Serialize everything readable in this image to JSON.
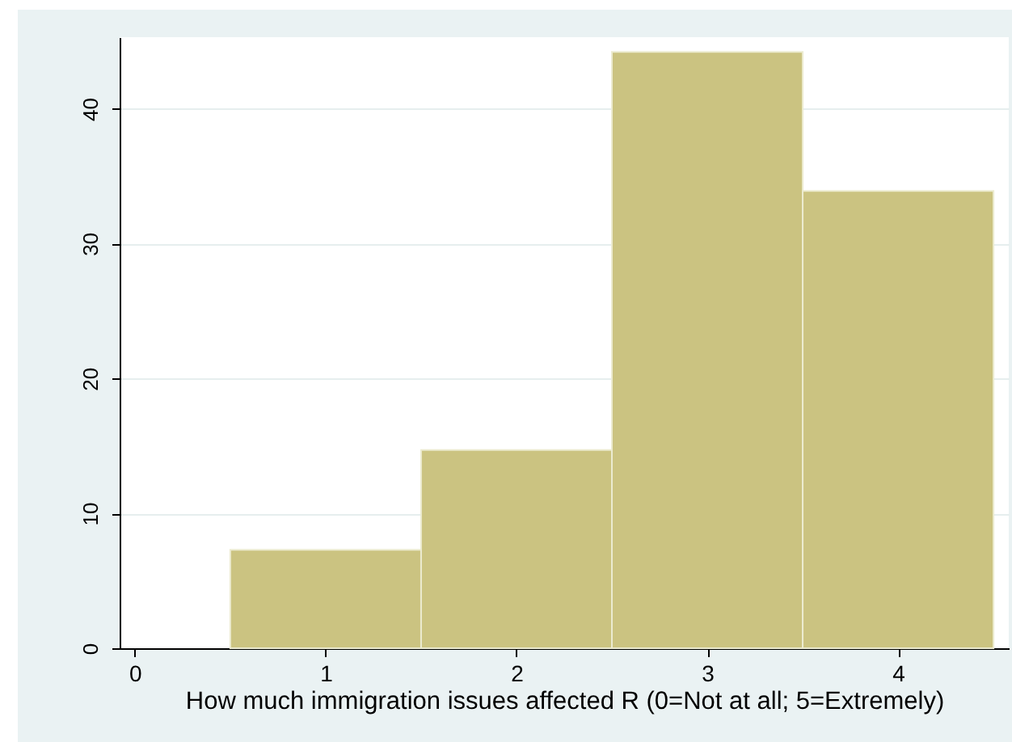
{
  "chart_data": {
    "type": "histogram",
    "xlabel": "How much immigration issues affected R (0=Not at all; 5=Extremely)",
    "bins": [
      0.5,
      1.5,
      2.5,
      3.5,
      4.5
    ],
    "values": [
      7.3,
      14.7,
      44.2,
      33.9
    ],
    "color": "#cbc381",
    "xlim": [
      -0.08,
      4.58
    ],
    "xticks": [
      0,
      1,
      2,
      3,
      4
    ],
    "ylim": [
      0,
      45.3
    ],
    "yticks": [
      0,
      10,
      20,
      30,
      40
    ],
    "grid": "y"
  }
}
